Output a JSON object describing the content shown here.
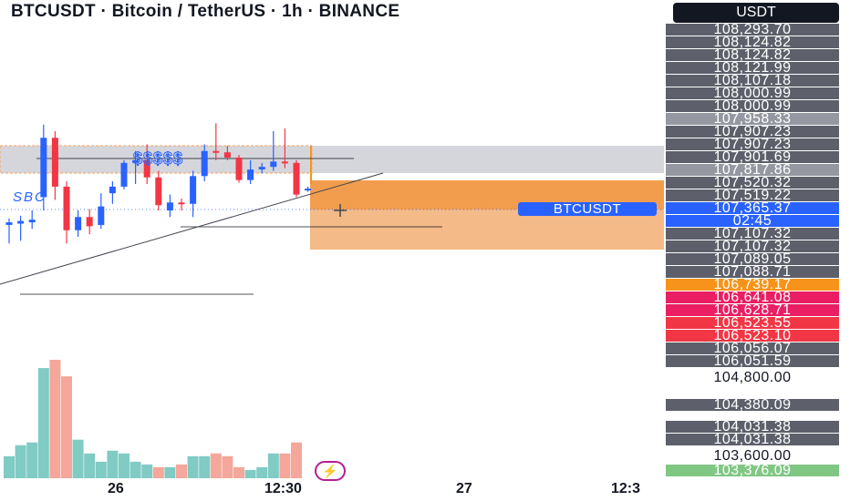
{
  "header": {
    "title": "BTCUSDT · Bitcoin / TetherUS · 1h · BINANCE",
    "currency": "USDT"
  },
  "chart_labels": {
    "dollar_signs": "$$$$$",
    "sbc": "SBC",
    "symbol_tag": "BTCUSDT"
  },
  "time_axis": [
    "26",
    "12:30",
    "27",
    "12:3"
  ],
  "price_tags": [
    {
      "text": "108,293.70",
      "color": "#5d606b"
    },
    {
      "text": "108,124.82",
      "color": "#5d606b"
    },
    {
      "text": "108,124.82",
      "color": "#5d606b"
    },
    {
      "text": "108,121.99",
      "color": "#5d606b"
    },
    {
      "text": "108,107.18",
      "color": "#5d606b"
    },
    {
      "text": "108,000.99",
      "color": "#5d606b"
    },
    {
      "text": "108,000.99",
      "color": "#5d606b"
    },
    {
      "text": "107,958.33",
      "color": "#9598a1"
    },
    {
      "text": "107,907.23",
      "color": "#5d606b"
    },
    {
      "text": "107,907.23",
      "color": "#5d606b"
    },
    {
      "text": "107,901.69",
      "color": "#5d606b"
    },
    {
      "text": "107,817.86",
      "color": "#9598a1"
    },
    {
      "text": "107,520.32",
      "color": "#5d606b"
    },
    {
      "text": "107,519.22",
      "color": "#5d606b"
    },
    {
      "text": "107,365.37",
      "color": "#2962ff"
    },
    {
      "text": "02:45",
      "color": "#2962ff"
    },
    {
      "text": "107,107.32",
      "color": "#5d606b"
    },
    {
      "text": "107,107.32",
      "color": "#5d606b"
    },
    {
      "text": "107,089.05",
      "color": "#5d606b"
    },
    {
      "text": "107,088.71",
      "color": "#5d606b"
    },
    {
      "text": "106,739.17",
      "color": "#f7931a"
    },
    {
      "text": "106,641.08",
      "color": "#e91e63"
    },
    {
      "text": "106,628.71",
      "color": "#e91e63"
    },
    {
      "text": "106,523.55",
      "color": "#f23645"
    },
    {
      "text": "106,523.10",
      "color": "#f23645"
    },
    {
      "text": "106,056.07",
      "color": "#5d606b"
    },
    {
      "text": "106,051.59",
      "color": "#5d606b"
    },
    {
      "text": "104,800.00",
      "color": "transparent"
    },
    {
      "text": "104,380.09",
      "color": "#5d606b"
    },
    {
      "text": "104,031.38",
      "color": "#5d606b"
    },
    {
      "text": "104,031.38",
      "color": "#5d606b"
    },
    {
      "text": "103,600.00",
      "color": "transparent"
    },
    {
      "text": "103,376.09",
      "color": "#81c784"
    }
  ],
  "colors": {
    "bull": "#2962ff",
    "bear": "#f23645",
    "vol_bull": "#80cbc4",
    "vol_bear": "#f4a79a",
    "zone_orange": "#f7a35c"
  },
  "candles": [
    {
      "o": 107090,
      "h": 107140,
      "l": 106950,
      "c": 107110
    },
    {
      "o": 107100,
      "h": 107160,
      "l": 106970,
      "c": 107120
    },
    {
      "o": 107110,
      "h": 107200,
      "l": 107060,
      "c": 107130
    },
    {
      "o": 107300,
      "h": 107850,
      "l": 107200,
      "c": 107750
    },
    {
      "o": 107750,
      "h": 107800,
      "l": 107280,
      "c": 107380
    },
    {
      "o": 107380,
      "h": 107420,
      "l": 106950,
      "c": 107050
    },
    {
      "o": 107050,
      "h": 107200,
      "l": 107000,
      "c": 107150
    },
    {
      "o": 107150,
      "h": 107210,
      "l": 107020,
      "c": 107080
    },
    {
      "o": 107090,
      "h": 107330,
      "l": 107060,
      "c": 107230
    },
    {
      "o": 107330,
      "h": 107420,
      "l": 107250,
      "c": 107380
    },
    {
      "o": 107380,
      "h": 107580,
      "l": 107360,
      "c": 107560
    },
    {
      "o": 107560,
      "h": 107650,
      "l": 107400,
      "c": 107580
    },
    {
      "o": 107580,
      "h": 107700,
      "l": 107400,
      "c": 107450
    },
    {
      "o": 107450,
      "h": 107500,
      "l": 107200,
      "c": 107240
    },
    {
      "o": 107200,
      "h": 107320,
      "l": 107150,
      "c": 107260
    },
    {
      "o": 107260,
      "h": 107290,
      "l": 107200,
      "c": 107250
    },
    {
      "o": 107250,
      "h": 107500,
      "l": 107150,
      "c": 107460
    },
    {
      "o": 107460,
      "h": 107700,
      "l": 107420,
      "c": 107650
    },
    {
      "o": 107650,
      "h": 107860,
      "l": 107580,
      "c": 107640
    },
    {
      "o": 107640,
      "h": 107690,
      "l": 107580,
      "c": 107600
    },
    {
      "o": 107600,
      "h": 107620,
      "l": 107410,
      "c": 107430
    },
    {
      "o": 107430,
      "h": 107580,
      "l": 107400,
      "c": 107510
    },
    {
      "o": 107510,
      "h": 107560,
      "l": 107480,
      "c": 107530
    },
    {
      "o": 107530,
      "h": 107800,
      "l": 107500,
      "c": 107570
    },
    {
      "o": 107570,
      "h": 107820,
      "l": 107520,
      "c": 107560
    },
    {
      "o": 107560,
      "h": 107580,
      "l": 107300,
      "c": 107320
    },
    {
      "o": 107360,
      "h": 107380,
      "l": 107340,
      "c": 107365
    }
  ],
  "volumes": [
    {
      "v": 8,
      "up": true
    },
    {
      "v": 12,
      "up": true
    },
    {
      "v": 13,
      "up": true
    },
    {
      "v": 40,
      "up": true
    },
    {
      "v": 43,
      "up": false
    },
    {
      "v": 37,
      "up": false
    },
    {
      "v": 14,
      "up": true
    },
    {
      "v": 9,
      "up": true
    },
    {
      "v": 6,
      "up": true
    },
    {
      "v": 10,
      "up": true
    },
    {
      "v": 9,
      "up": true
    },
    {
      "v": 6,
      "up": true
    },
    {
      "v": 5,
      "up": true
    },
    {
      "v": 4,
      "up": false
    },
    {
      "v": 4,
      "up": true
    },
    {
      "v": 5,
      "up": false
    },
    {
      "v": 8,
      "up": true
    },
    {
      "v": 8,
      "up": true
    },
    {
      "v": 9,
      "up": false
    },
    {
      "v": 8,
      "up": false
    },
    {
      "v": 4,
      "up": false
    },
    {
      "v": 3,
      "up": true
    },
    {
      "v": 4,
      "up": true
    },
    {
      "v": 9,
      "up": true
    },
    {
      "v": 9,
      "up": false
    },
    {
      "v": 13,
      "up": false
    },
    {
      "v": 0,
      "up": true
    }
  ]
}
